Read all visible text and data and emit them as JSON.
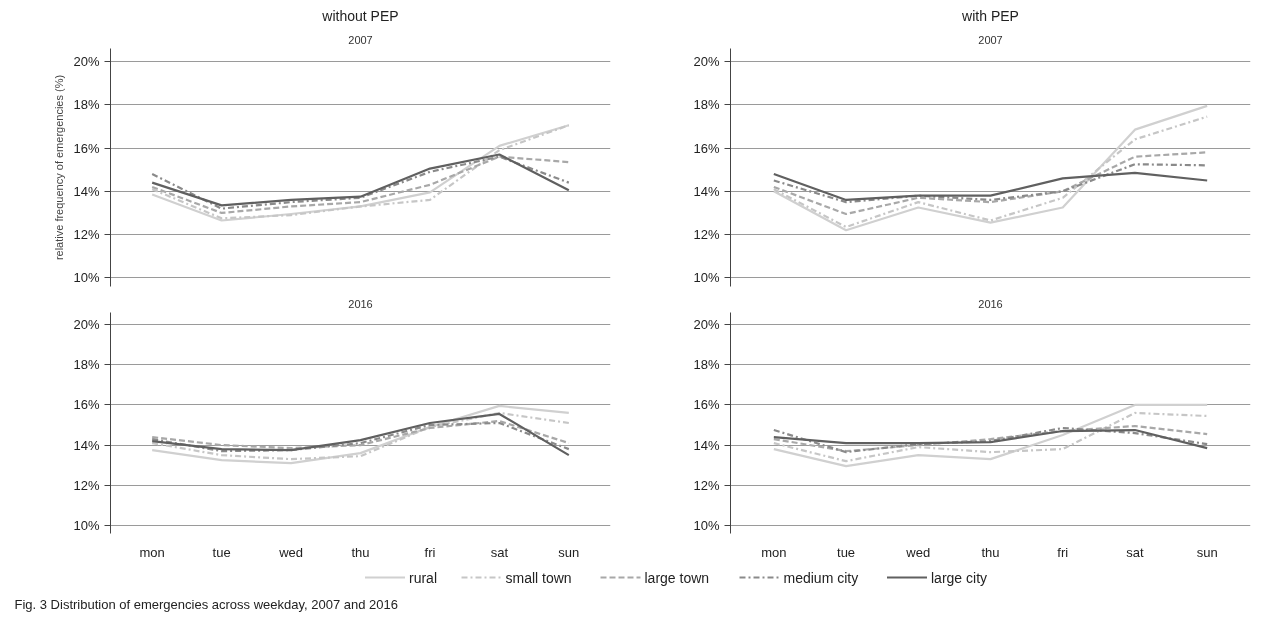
{
  "chart_data": [
    {
      "type": "line",
      "title": "without PEP",
      "subtitle": "2007",
      "ylabel": "relative frequency of emergencies (%)",
      "legend": "bottom",
      "categories": [
        null,
        null,
        null,
        null,
        null,
        null,
        null
      ],
      "ylim": [
        9.6,
        20.6
      ],
      "yticks": [
        {
          "value": 10,
          "label": "10%"
        },
        {
          "value": 12,
          "label": "12%"
        },
        {
          "value": 14,
          "label": "14%"
        },
        {
          "value": 16,
          "label": "16%"
        },
        {
          "value": 18,
          "label": "18%"
        },
        {
          "value": 20,
          "label": "20%"
        }
      ],
      "grid": "y",
      "tick_labels": "y",
      "series": [
        {
          "name": "rural",
          "color": "#d0d0d0",
          "line_style": "solid",
          "values": [
            13.85,
            12.65,
            12.95,
            13.3,
            13.95,
            16.1,
            17.05
          ]
        },
        {
          "name": "small town",
          "color": "#c6c6c6",
          "line_style": "dashdot",
          "values": [
            14.1,
            12.75,
            12.9,
            13.3,
            13.6,
            15.9,
            17.05
          ]
        },
        {
          "name": "large town",
          "color": "#a8a8a8",
          "line_style": "dashed",
          "values": [
            14.2,
            13.0,
            13.3,
            13.5,
            14.3,
            15.6,
            15.35
          ]
        },
        {
          "name": "medium city",
          "color": "#8a8a8a",
          "line_style": "dashdot",
          "values": [
            14.8,
            13.2,
            13.5,
            13.7,
            14.9,
            15.6,
            14.4
          ]
        },
        {
          "name": "large city",
          "color": "#606060",
          "line_style": "solid",
          "values": [
            14.4,
            13.35,
            13.6,
            13.75,
            15.05,
            15.7,
            14.05
          ]
        }
      ]
    },
    {
      "type": "line",
      "title": "with PEP",
      "subtitle": "2007",
      "categories": [
        null,
        null,
        null,
        null,
        null,
        null,
        null
      ],
      "ylim": [
        9.6,
        20.6
      ],
      "yticks": [
        {
          "value": 10,
          "label": "10%"
        },
        {
          "value": 12,
          "label": "12%"
        },
        {
          "value": 14,
          "label": "14%"
        },
        {
          "value": 16,
          "label": "16%"
        },
        {
          "value": 18,
          "label": "18%"
        },
        {
          "value": 20,
          "label": "20%"
        }
      ],
      "grid": "y",
      "tick_labels": "y",
      "series": [
        {
          "color": "#d0d0d0",
          "line_style": "solid",
          "values": [
            14.0,
            12.2,
            13.25,
            12.55,
            13.25,
            16.85,
            17.95
          ]
        },
        {
          "color": "#c6c6c6",
          "line_style": "dashdot",
          "values": [
            14.1,
            12.35,
            13.5,
            12.65,
            13.7,
            16.4,
            17.45
          ]
        },
        {
          "color": "#a8a8a8",
          "line_style": "dashed",
          "values": [
            14.2,
            12.95,
            13.7,
            13.5,
            14.0,
            15.6,
            15.8
          ]
        },
        {
          "color": "#8a8a8a",
          "line_style": "dashdot",
          "values": [
            14.5,
            13.5,
            13.8,
            13.6,
            14.0,
            15.25,
            15.2
          ]
        },
        {
          "color": "#606060",
          "line_style": "solid",
          "values": [
            14.8,
            13.6,
            13.8,
            13.8,
            14.6,
            14.85,
            14.5
          ]
        }
      ]
    },
    {
      "type": "line",
      "subtitle": "2016",
      "categories": [
        "mon",
        "tue",
        "wed",
        "thu",
        "fri",
        "sat",
        "sun"
      ],
      "ylim": [
        9.6,
        20.6
      ],
      "yticks": [
        {
          "value": 10,
          "label": "10%"
        },
        {
          "value": 12,
          "label": "12%"
        },
        {
          "value": 14,
          "label": "14%"
        },
        {
          "value": 16,
          "label": "16%"
        },
        {
          "value": 18,
          "label": "18%"
        },
        {
          "value": 20,
          "label": "20%"
        }
      ],
      "grid": "y",
      "series": [
        {
          "color": "#d0d0d0",
          "line_style": "solid",
          "values": [
            13.75,
            13.25,
            13.1,
            13.6,
            14.9,
            15.95,
            15.6
          ]
        },
        {
          "color": "#c6c6c6",
          "line_style": "dashdot",
          "values": [
            14.1,
            13.5,
            13.3,
            13.45,
            14.9,
            15.6,
            15.1
          ]
        },
        {
          "color": "#a8a8a8",
          "line_style": "dashed",
          "values": [
            14.4,
            14.0,
            13.85,
            14.0,
            14.85,
            15.2,
            14.1
          ]
        },
        {
          "color": "#8a8a8a",
          "line_style": "dashdot",
          "values": [
            14.3,
            13.7,
            13.75,
            14.1,
            15.0,
            15.1,
            13.8
          ]
        },
        {
          "color": "#606060",
          "line_style": "solid",
          "values": [
            14.2,
            13.8,
            13.75,
            14.25,
            15.1,
            15.55,
            13.5
          ]
        }
      ]
    },
    {
      "type": "line",
      "subtitle": "2016",
      "categories": [
        "mon",
        "tue",
        "wed",
        "thu",
        "fri",
        "sat",
        "sun"
      ],
      "ylim": [
        9.6,
        20.6
      ],
      "yticks": [
        {
          "value": 10,
          "label": "10%"
        },
        {
          "value": 12,
          "label": "12%"
        },
        {
          "value": 14,
          "label": "14%"
        },
        {
          "value": 16,
          "label": "16%"
        },
        {
          "value": 18,
          "label": "18%"
        },
        {
          "value": 20,
          "label": "20%"
        }
      ],
      "grid": "y",
      "annotations": [
        "Fig. 3 Distribution of emergencies across weekday, 2007 and 2016"
      ],
      "series": [
        {
          "color": "#d0d0d0",
          "line_style": "solid",
          "values": [
            13.8,
            12.95,
            13.5,
            13.3,
            14.5,
            16.0,
            16.0
          ]
        },
        {
          "color": "#c6c6c6",
          "line_style": "dashdot",
          "values": [
            14.1,
            13.2,
            13.9,
            13.65,
            13.8,
            15.6,
            15.45
          ]
        },
        {
          "color": "#a8a8a8",
          "line_style": "dashed",
          "values": [
            14.3,
            13.7,
            14.0,
            14.3,
            14.7,
            14.95,
            14.55
          ]
        },
        {
          "color": "#8a8a8a",
          "line_style": "dashdot",
          "values": [
            14.75,
            13.65,
            14.05,
            14.2,
            14.85,
            14.6,
            14.05
          ]
        },
        {
          "color": "#606060",
          "line_style": "solid",
          "values": [
            14.4,
            14.1,
            14.1,
            14.15,
            14.7,
            14.75,
            13.85
          ]
        }
      ]
    }
  ]
}
